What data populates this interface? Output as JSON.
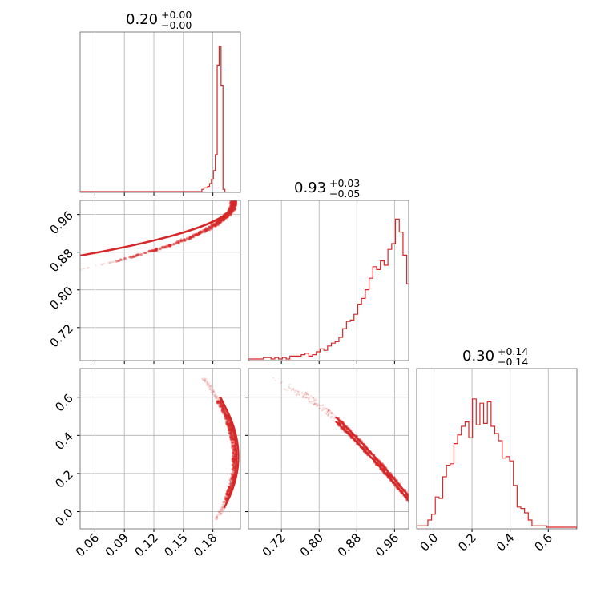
{
  "colors": {
    "series": "#d62728",
    "grid": "#b0b0b0",
    "frame": "#808080"
  },
  "chart_data": [
    {
      "type": "histogram",
      "position": "row1-col1",
      "title": {
        "value": "0.20",
        "upper": "+0.00",
        "lower": "−0.00"
      },
      "xlim": [
        0.045,
        0.208
      ],
      "grid_x": [
        0.06,
        0.09,
        0.12,
        0.15,
        0.18
      ],
      "bins": {
        "start": 0.1688,
        "step": 0.00195,
        "heights": [
          0.01,
          0.02,
          0.02,
          0.03,
          0.05,
          0.08,
          0.14,
          0.25,
          0.87,
          1.0,
          0.73,
          0.01
        ]
      }
    },
    {
      "type": "scatter-contour",
      "position": "row2-col1",
      "xlim": [
        0.045,
        0.208
      ],
      "ylim": [
        0.65,
        0.99
      ],
      "yticks": [
        "0.72",
        "0.80",
        "0.88",
        "0.96"
      ],
      "ytick_values": [
        0.72,
        0.8,
        0.88,
        0.96
      ],
      "grid_x": [
        0.06,
        0.09,
        0.12,
        0.15,
        0.18
      ],
      "grid_y": [
        0.72,
        0.8,
        0.88,
        0.96
      ]
    },
    {
      "type": "histogram",
      "position": "row2-col2",
      "title": {
        "value": "0.93",
        "upper": "+0.03",
        "lower": "−0.05"
      },
      "xlim": [
        0.65,
        0.99
      ],
      "grid_x": [
        0.72,
        0.8,
        0.88,
        0.96
      ],
      "bins": {
        "start": 0.65,
        "step": 0.008,
        "heights": [
          0.0,
          0.0,
          0.0,
          0.0,
          0.01,
          0.01,
          0.0,
          0.01,
          0.0,
          0.01,
          0.0,
          0.02,
          0.02,
          0.02,
          0.03,
          0.04,
          0.02,
          0.03,
          0.05,
          0.07,
          0.06,
          0.09,
          0.11,
          0.12,
          0.15,
          0.21,
          0.26,
          0.27,
          0.31,
          0.38,
          0.42,
          0.48,
          0.56,
          0.64,
          0.62,
          0.68,
          0.65,
          0.76,
          0.8,
          0.97,
          0.88,
          0.72,
          0.52
        ]
      }
    },
    {
      "type": "scatter-contour",
      "position": "row3-col1",
      "xlim": [
        0.045,
        0.208
      ],
      "ylim": [
        -0.09,
        0.75
      ],
      "xticks": [
        "0.06",
        "0.09",
        "0.12",
        "0.15",
        "0.18"
      ],
      "xtick_values": [
        0.06,
        0.09,
        0.12,
        0.15,
        0.18
      ],
      "yticks": [
        "0.0",
        "0.2",
        "0.4",
        "0.6"
      ],
      "ytick_values": [
        0.0,
        0.2,
        0.4,
        0.6
      ],
      "grid_x": [
        0.06,
        0.09,
        0.12,
        0.15,
        0.18
      ],
      "grid_y": [
        0.0,
        0.2,
        0.4,
        0.6
      ]
    },
    {
      "type": "scatter-contour",
      "position": "row3-col2",
      "xlim": [
        0.65,
        0.99
      ],
      "ylim": [
        -0.09,
        0.75
      ],
      "xticks": [
        "0.72",
        "0.80",
        "0.88",
        "0.96"
      ],
      "xtick_values": [
        0.72,
        0.8,
        0.88,
        0.96
      ],
      "grid_x": [
        0.72,
        0.8,
        0.88,
        0.96
      ],
      "grid_y": [
        0.0,
        0.2,
        0.4,
        0.6
      ]
    },
    {
      "type": "histogram",
      "position": "row3-col3",
      "title": {
        "value": "0.30",
        "upper": "+0.14",
        "lower": "−0.14"
      },
      "xlim": [
        -0.09,
        0.75
      ],
      "grid_x": [
        0.0,
        0.2,
        0.4,
        0.6
      ],
      "xticks": [
        "0.0",
        "0.2",
        "0.4",
        "0.6"
      ],
      "xtick_values": [
        0.0,
        0.2,
        0.4,
        0.6
      ],
      "bins": {
        "start": -0.09,
        "step": 0.0195,
        "heights": [
          0.01,
          0.01,
          0.01,
          0.05,
          0.09,
          0.21,
          0.2,
          0.35,
          0.43,
          0.44,
          0.58,
          0.64,
          0.7,
          0.73,
          0.62,
          0.89,
          0.71,
          0.86,
          0.72,
          0.87,
          0.7,
          0.65,
          0.6,
          0.48,
          0.49,
          0.46,
          0.29,
          0.14,
          0.13,
          0.1,
          0.05,
          0.01,
          0.01,
          0.01,
          0.01,
          0.0,
          0.0,
          0.0,
          0.0,
          0.0,
          0.0,
          0.0,
          0.0
        ]
      }
    }
  ]
}
